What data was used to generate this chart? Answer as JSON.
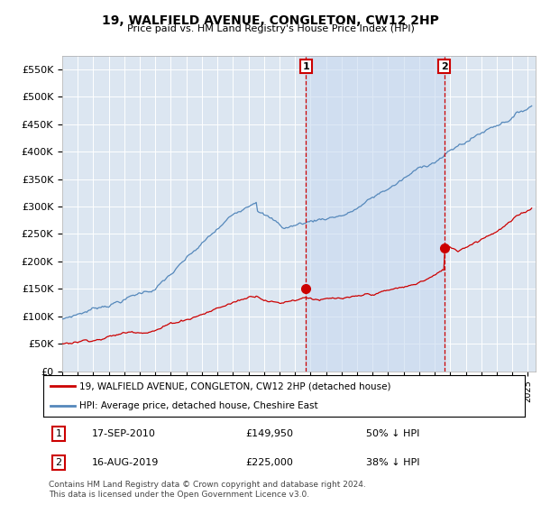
{
  "title": "19, WALFIELD AVENUE, CONGLETON, CW12 2HP",
  "subtitle": "Price paid vs. HM Land Registry's House Price Index (HPI)",
  "ylabel_ticks": [
    "£0",
    "£50K",
    "£100K",
    "£150K",
    "£200K",
    "£250K",
    "£300K",
    "£350K",
    "£400K",
    "£450K",
    "£500K",
    "£550K"
  ],
  "ytick_values": [
    0,
    50000,
    100000,
    150000,
    200000,
    250000,
    300000,
    350000,
    400000,
    450000,
    500000,
    550000
  ],
  "ylim": [
    0,
    575000
  ],
  "xlim_start": 1995.0,
  "xlim_end": 2025.5,
  "background_color": "#dce6f1",
  "plot_bg_color": "#dce6f1",
  "shaded_bg": "#d8e8f5",
  "red_color": "#cc0000",
  "blue_color": "#5588bb",
  "transaction1_x": 2010.71,
  "transaction1_y": 149950,
  "transaction2_x": 2019.62,
  "transaction2_y": 225000,
  "legend_label_red": "19, WALFIELD AVENUE, CONGLETON, CW12 2HP (detached house)",
  "legend_label_blue": "HPI: Average price, detached house, Cheshire East",
  "ann1_date": "17-SEP-2010",
  "ann1_price": "£149,950",
  "ann1_hpi": "50% ↓ HPI",
  "ann2_date": "16-AUG-2019",
  "ann2_price": "£225,000",
  "ann2_hpi": "38% ↓ HPI",
  "footer": "Contains HM Land Registry data © Crown copyright and database right 2024.\nThis data is licensed under the Open Government Licence v3.0."
}
